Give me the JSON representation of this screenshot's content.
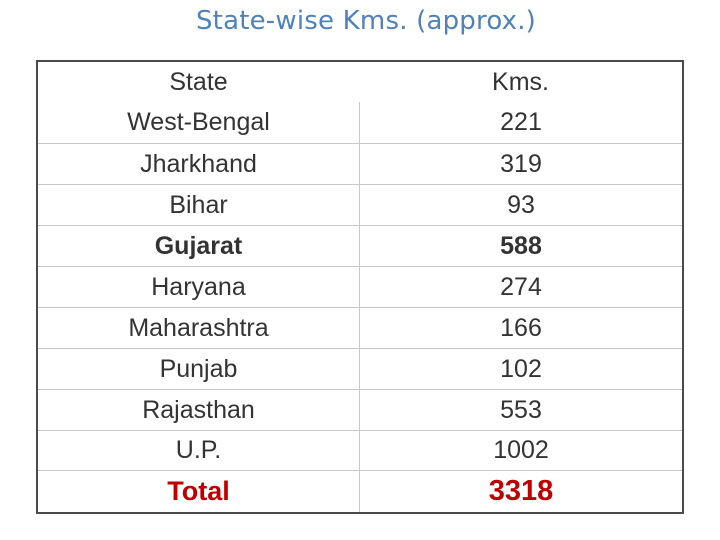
{
  "title": "State-wise Kms. (approx.)",
  "table": {
    "headers": {
      "state": "State",
      "kms": "Kms."
    },
    "rows": [
      {
        "state": "West-Bengal",
        "kms": "221"
      },
      {
        "state": "Jharkhand",
        "kms": "319"
      },
      {
        "state": "Bihar",
        "kms": "93"
      },
      {
        "state": "Gujarat",
        "kms": "588"
      },
      {
        "state": "Haryana",
        "kms": "274"
      },
      {
        "state": "Maharashtra",
        "kms": "166"
      },
      {
        "state": "Punjab",
        "kms": "102"
      },
      {
        "state": "Rajasthan",
        "kms": "553"
      },
      {
        "state": "U.P.",
        "kms": "1002"
      }
    ],
    "total": {
      "label": "Total",
      "value": "3318"
    }
  },
  "colors": {
    "title": "#4f81bd",
    "total": "#c00000",
    "text": "#333333"
  }
}
